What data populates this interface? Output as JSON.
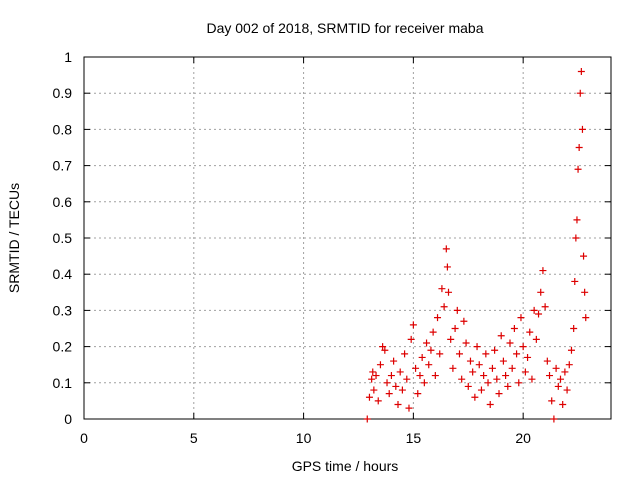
{
  "chart_data": {
    "type": "scatter",
    "title": "Day 002 of 2018, SRMTID for receiver maba",
    "xlabel": "GPS time / hours",
    "ylabel": "SRMTID / TECUs",
    "xlim": [
      0,
      24
    ],
    "ylim": [
      0,
      1
    ],
    "xticks": [
      0,
      5,
      10,
      15,
      20
    ],
    "yticks": [
      0,
      0.1,
      0.2,
      0.3,
      0.4,
      0.5,
      0.6,
      0.7,
      0.8,
      0.9,
      1
    ],
    "ytick_labels": [
      "0",
      "0.1",
      "0.2",
      "0.3",
      "0.4",
      "0.5",
      "0.6",
      "0.7",
      "0.8",
      "0.9",
      "1"
    ],
    "grid": true,
    "marker": "+",
    "colors": {
      "series": "#dd0000",
      "grid": "#a0a0a0",
      "axis": "#000000"
    },
    "series": [
      {
        "name": "SRMTID",
        "points": [
          [
            12.9,
            0.0
          ],
          [
            13.0,
            0.06
          ],
          [
            13.1,
            0.11
          ],
          [
            13.15,
            0.13
          ],
          [
            13.2,
            0.08
          ],
          [
            13.3,
            0.12
          ],
          [
            13.4,
            0.05
          ],
          [
            13.5,
            0.15
          ],
          [
            13.6,
            0.2
          ],
          [
            13.7,
            0.19
          ],
          [
            13.8,
            0.1
          ],
          [
            13.9,
            0.07
          ],
          [
            14.0,
            0.12
          ],
          [
            14.1,
            0.16
          ],
          [
            14.2,
            0.09
          ],
          [
            14.3,
            0.04
          ],
          [
            14.4,
            0.13
          ],
          [
            14.5,
            0.08
          ],
          [
            14.6,
            0.18
          ],
          [
            14.7,
            0.11
          ],
          [
            14.8,
            0.03
          ],
          [
            14.9,
            0.22
          ],
          [
            15.0,
            0.26
          ],
          [
            15.1,
            0.14
          ],
          [
            15.2,
            0.07
          ],
          [
            15.3,
            0.12
          ],
          [
            15.4,
            0.17
          ],
          [
            15.5,
            0.1
          ],
          [
            15.6,
            0.21
          ],
          [
            15.7,
            0.15
          ],
          [
            15.8,
            0.19
          ],
          [
            15.9,
            0.24
          ],
          [
            16.0,
            0.12
          ],
          [
            16.1,
            0.28
          ],
          [
            16.2,
            0.18
          ],
          [
            16.3,
            0.36
          ],
          [
            16.4,
            0.31
          ],
          [
            16.5,
            0.47
          ],
          [
            16.55,
            0.42
          ],
          [
            16.6,
            0.35
          ],
          [
            16.7,
            0.22
          ],
          [
            16.8,
            0.14
          ],
          [
            16.9,
            0.25
          ],
          [
            17.0,
            0.3
          ],
          [
            17.1,
            0.18
          ],
          [
            17.2,
            0.11
          ],
          [
            17.3,
            0.27
          ],
          [
            17.4,
            0.21
          ],
          [
            17.5,
            0.09
          ],
          [
            17.6,
            0.16
          ],
          [
            17.7,
            0.13
          ],
          [
            17.8,
            0.06
          ],
          [
            17.9,
            0.2
          ],
          [
            18.0,
            0.15
          ],
          [
            18.1,
            0.08
          ],
          [
            18.2,
            0.12
          ],
          [
            18.3,
            0.18
          ],
          [
            18.4,
            0.1
          ],
          [
            18.5,
            0.04
          ],
          [
            18.6,
            0.14
          ],
          [
            18.7,
            0.19
          ],
          [
            18.8,
            0.11
          ],
          [
            18.9,
            0.07
          ],
          [
            19.0,
            0.23
          ],
          [
            19.1,
            0.16
          ],
          [
            19.2,
            0.12
          ],
          [
            19.3,
            0.09
          ],
          [
            19.4,
            0.21
          ],
          [
            19.5,
            0.14
          ],
          [
            19.6,
            0.25
          ],
          [
            19.7,
            0.18
          ],
          [
            19.8,
            0.1
          ],
          [
            19.9,
            0.28
          ],
          [
            20.0,
            0.2
          ],
          [
            20.1,
            0.13
          ],
          [
            20.2,
            0.17
          ],
          [
            20.3,
            0.24
          ],
          [
            20.4,
            0.11
          ],
          [
            20.5,
            0.3
          ],
          [
            20.6,
            0.22
          ],
          [
            20.7,
            0.29
          ],
          [
            20.8,
            0.35
          ],
          [
            20.9,
            0.41
          ],
          [
            21.0,
            0.31
          ],
          [
            21.1,
            0.16
          ],
          [
            21.2,
            0.12
          ],
          [
            21.3,
            0.05
          ],
          [
            21.4,
            0.0
          ],
          [
            21.5,
            0.14
          ],
          [
            21.6,
            0.09
          ],
          [
            21.7,
            0.11
          ],
          [
            21.8,
            0.04
          ],
          [
            21.9,
            0.13
          ],
          [
            22.0,
            0.08
          ],
          [
            22.1,
            0.15
          ],
          [
            22.2,
            0.19
          ],
          [
            22.3,
            0.25
          ],
          [
            22.35,
            0.38
          ],
          [
            22.4,
            0.5
          ],
          [
            22.45,
            0.55
          ],
          [
            22.5,
            0.69
          ],
          [
            22.55,
            0.75
          ],
          [
            22.6,
            0.9
          ],
          [
            22.65,
            0.96
          ],
          [
            22.7,
            0.8
          ],
          [
            22.75,
            0.45
          ],
          [
            22.8,
            0.35
          ],
          [
            22.85,
            0.28
          ]
        ]
      }
    ]
  }
}
